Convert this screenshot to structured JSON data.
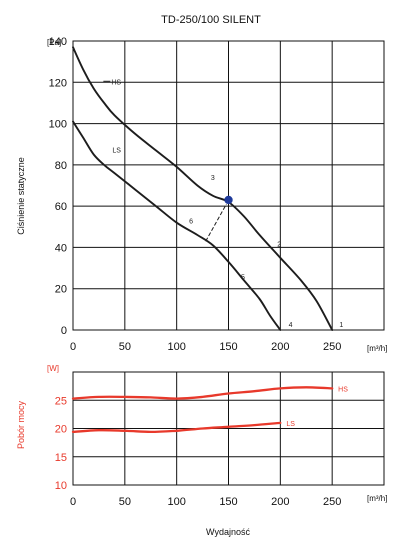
{
  "colors": {
    "curve": "#1d1d1d",
    "power_curve": "#e8392b",
    "power_label": "#e8392b",
    "point": "#1e3a9a",
    "grid": "#111111"
  },
  "chart_data": [
    {
      "type": "line",
      "title": "TD-250/100 SILENT",
      "ylabel": "Ciśnienie statyczne",
      "yunit": "[Pa]",
      "xunit": "[m³/h]",
      "xlim": [
        0,
        300
      ],
      "ylim": [
        0,
        140
      ],
      "x_ticks": [
        "0",
        "50",
        "100",
        "150",
        "200",
        "250"
      ],
      "y_ticks": [
        "0",
        "20",
        "40",
        "60",
        "80",
        "100",
        "120",
        "140"
      ],
      "grid": true,
      "series": [
        {
          "name": "HS",
          "points": [
            [
              0,
              137
            ],
            [
              10,
              126
            ],
            [
              20,
              117
            ],
            [
              30,
              110
            ],
            [
              40,
              104
            ],
            [
              60,
              95
            ],
            [
              80,
              87
            ],
            [
              100,
              79
            ],
            [
              120,
              70
            ],
            [
              135,
              65
            ],
            [
              150,
              62
            ],
            [
              165,
              55
            ],
            [
              180,
              46
            ],
            [
              200,
              35
            ],
            [
              220,
              24
            ],
            [
              235,
              14
            ],
            [
              250,
              0
            ]
          ]
        },
        {
          "name": "LS",
          "points": [
            [
              0,
              101
            ],
            [
              10,
              93
            ],
            [
              20,
              85
            ],
            [
              30,
              80
            ],
            [
              40,
              76
            ],
            [
              60,
              68
            ],
            [
              80,
              60
            ],
            [
              100,
              52
            ],
            [
              120,
              46
            ],
            [
              135,
              41
            ],
            [
              150,
              33
            ],
            [
              165,
              24
            ],
            [
              180,
              15
            ],
            [
              190,
              7
            ],
            [
              200,
              0
            ]
          ]
        }
      ],
      "marker": {
        "x": 150,
        "y": 63
      },
      "operating_line": [
        [
          128,
          43
        ],
        [
          148,
          61
        ]
      ],
      "annotations": [
        {
          "text": "1",
          "x": 257,
          "y": 3
        },
        {
          "text": "2",
          "x": 197,
          "y": 42
        },
        {
          "text": "3",
          "x": 133,
          "y": 74
        },
        {
          "text": "4",
          "x": 208,
          "y": 3
        },
        {
          "text": "5",
          "x": 162,
          "y": 26
        },
        {
          "text": "6",
          "x": 112,
          "y": 53
        }
      ]
    },
    {
      "type": "line",
      "ylabel": "Pobór mocy",
      "yunit": "[W]",
      "xunit": "[m³/h]",
      "xlim": [
        0,
        300
      ],
      "ylim": [
        10,
        30
      ],
      "x_ticks": [
        "0",
        "50",
        "100",
        "150",
        "200",
        "250"
      ],
      "y_ticks": [
        "10",
        "15",
        "20",
        "25"
      ],
      "grid": true,
      "series": [
        {
          "name": "HS",
          "points": [
            [
              0,
              25.3
            ],
            [
              25,
              25.6
            ],
            [
              50,
              25.6
            ],
            [
              75,
              25.5
            ],
            [
              100,
              25.3
            ],
            [
              125,
              25.6
            ],
            [
              150,
              26.2
            ],
            [
              175,
              26.6
            ],
            [
              200,
              27.1
            ],
            [
              225,
              27.3
            ],
            [
              250,
              27.1
            ]
          ]
        },
        {
          "name": "LS",
          "points": [
            [
              0,
              19.4
            ],
            [
              25,
              19.7
            ],
            [
              50,
              19.6
            ],
            [
              75,
              19.4
            ],
            [
              100,
              19.6
            ],
            [
              125,
              20.0
            ],
            [
              150,
              20.3
            ],
            [
              175,
              20.6
            ],
            [
              200,
              21.0
            ]
          ]
        }
      ]
    }
  ],
  "footer": {
    "xlabel": "Wydajność"
  }
}
